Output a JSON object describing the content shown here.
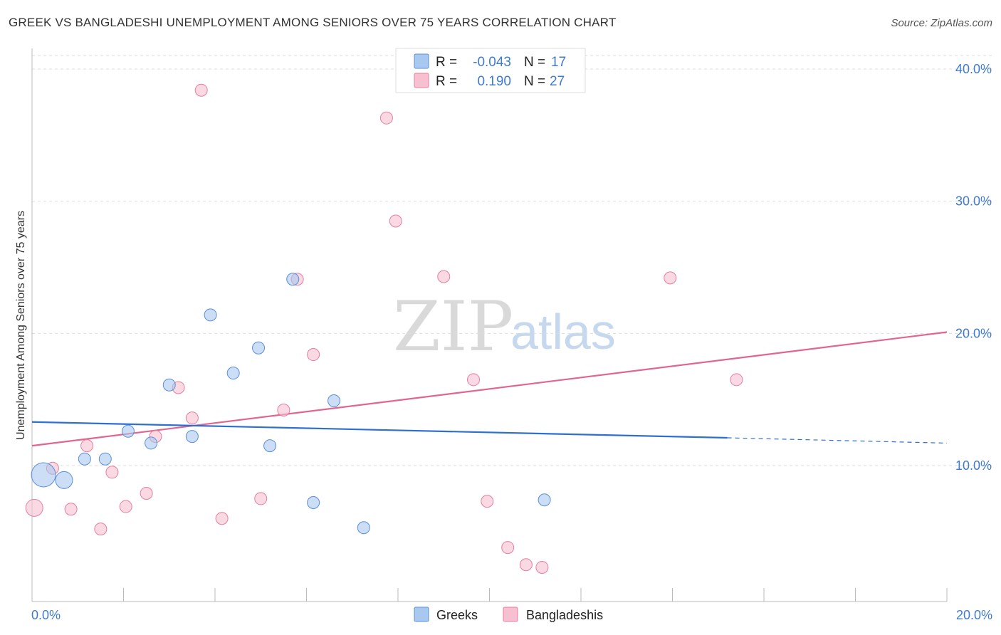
{
  "title": "GREEK VS BANGLADESHI UNEMPLOYMENT AMONG SENIORS OVER 75 YEARS CORRELATION CHART",
  "source": "Source: ZipAtlas.com",
  "watermark": {
    "zip": "ZIP",
    "atlas": "atlas"
  },
  "colors": {
    "greek_fill": "#a9c8f0",
    "greek_stroke": "#5b8fd6",
    "greek_line": "#2e6fcf",
    "bangla_fill": "#f7c0d0",
    "bangla_stroke": "#e47fa0",
    "bangla_line": "#e0668f",
    "tick_text": "#3f7bd0"
  },
  "legend": {
    "row1": {
      "r_label": "R =",
      "r_value": "-0.043",
      "n_label": "N =",
      "n_value": "17"
    },
    "row2": {
      "r_label": "R =",
      "r_value": "0.190",
      "n_label": "N =",
      "n_value": "27"
    }
  },
  "bottom_legend": {
    "greeks": "Greeks",
    "bangladeshis": "Bangladeshis"
  },
  "chart_data": {
    "type": "scatter",
    "title": "GREEK VS BANGLADESHI UNEMPLOYMENT AMONG SENIORS OVER 75 YEARS CORRELATION CHART",
    "xlabel": "",
    "ylabel": "Unemployment Among Seniors over 75 years",
    "xlim": [
      0,
      20
    ],
    "ylim": [
      0,
      42
    ],
    "x_tick_labels": [
      "0.0%",
      "20.0%"
    ],
    "y_ticks": [
      10,
      20,
      30,
      40
    ],
    "y_tick_labels": [
      "10.0%",
      "20.0%",
      "30.0%",
      "40.0%"
    ],
    "series": [
      {
        "name": "Greeks",
        "r": -0.043,
        "n": 17,
        "points": [
          {
            "x": 0.25,
            "y": 9.3,
            "size": 3
          },
          {
            "x": 0.7,
            "y": 8.9,
            "size": 2
          },
          {
            "x": 1.15,
            "y": 10.5,
            "size": 1
          },
          {
            "x": 1.6,
            "y": 10.5,
            "size": 1
          },
          {
            "x": 2.1,
            "y": 12.6,
            "size": 1
          },
          {
            "x": 2.6,
            "y": 11.7,
            "size": 1
          },
          {
            "x": 3.0,
            "y": 16.1,
            "size": 1
          },
          {
            "x": 3.5,
            "y": 12.2,
            "size": 1
          },
          {
            "x": 3.9,
            "y": 21.4,
            "size": 1
          },
          {
            "x": 4.4,
            "y": 17.0,
            "size": 1
          },
          {
            "x": 4.95,
            "y": 18.9,
            "size": 1
          },
          {
            "x": 5.2,
            "y": 11.5,
            "size": 1
          },
          {
            "x": 5.7,
            "y": 24.1,
            "size": 1
          },
          {
            "x": 6.15,
            "y": 7.2,
            "size": 1
          },
          {
            "x": 6.6,
            "y": 14.9,
            "size": 1
          },
          {
            "x": 7.25,
            "y": 5.3,
            "size": 1
          },
          {
            "x": 11.2,
            "y": 7.4,
            "size": 1
          }
        ],
        "trend": {
          "x0": 0,
          "y0": 13.3,
          "x1": 15.2,
          "y1": 12.1,
          "dash_x1": 20,
          "dash_y1": 11.7
        }
      },
      {
        "name": "Bangladeshis",
        "r": 0.19,
        "n": 27,
        "points": [
          {
            "x": 0.05,
            "y": 6.8,
            "size": 2
          },
          {
            "x": 0.45,
            "y": 9.8,
            "size": 1
          },
          {
            "x": 0.85,
            "y": 6.7,
            "size": 1
          },
          {
            "x": 1.2,
            "y": 11.5,
            "size": 1
          },
          {
            "x": 1.5,
            "y": 5.2,
            "size": 1
          },
          {
            "x": 1.75,
            "y": 9.5,
            "size": 1
          },
          {
            "x": 2.05,
            "y": 6.9,
            "size": 1
          },
          {
            "x": 2.5,
            "y": 7.9,
            "size": 1
          },
          {
            "x": 2.7,
            "y": 12.2,
            "size": 1
          },
          {
            "x": 3.2,
            "y": 15.9,
            "size": 1
          },
          {
            "x": 3.5,
            "y": 13.6,
            "size": 1
          },
          {
            "x": 3.7,
            "y": 38.4,
            "size": 1
          },
          {
            "x": 4.15,
            "y": 6.0,
            "size": 1
          },
          {
            "x": 5.0,
            "y": 7.5,
            "size": 1
          },
          {
            "x": 5.5,
            "y": 14.2,
            "size": 1
          },
          {
            "x": 5.8,
            "y": 24.1,
            "size": 1
          },
          {
            "x": 6.15,
            "y": 18.4,
            "size": 1
          },
          {
            "x": 7.75,
            "y": 36.3,
            "size": 1
          },
          {
            "x": 7.95,
            "y": 28.5,
            "size": 1
          },
          {
            "x": 9.0,
            "y": 24.3,
            "size": 1
          },
          {
            "x": 9.65,
            "y": 16.5,
            "size": 1
          },
          {
            "x": 9.95,
            "y": 7.3,
            "size": 1
          },
          {
            "x": 10.4,
            "y": 3.8,
            "size": 1
          },
          {
            "x": 10.8,
            "y": 2.5,
            "size": 1
          },
          {
            "x": 11.15,
            "y": 2.3,
            "size": 1
          },
          {
            "x": 13.95,
            "y": 24.2,
            "size": 1
          },
          {
            "x": 15.4,
            "y": 16.5,
            "size": 1
          }
        ],
        "trend": {
          "x0": 0,
          "y0": 11.5,
          "x1": 20,
          "y1": 20.1
        }
      }
    ],
    "legend_position": "top-center"
  }
}
